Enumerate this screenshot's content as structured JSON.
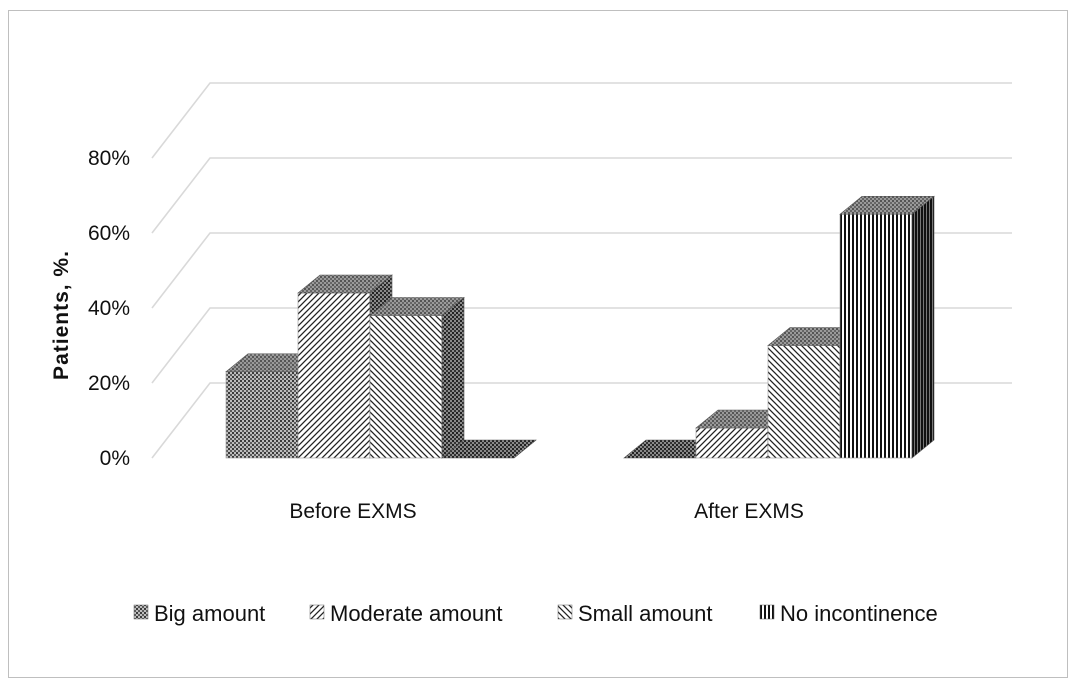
{
  "chart_data": {
    "type": "bar",
    "style": "3d-clustered-column",
    "ylabel": "Patients, %.",
    "ylim": [
      0,
      80
    ],
    "yticks": [
      "0%",
      "20%",
      "40%",
      "60%",
      "80%"
    ],
    "grid": true,
    "legend_position": "bottom",
    "categories": [
      "Before EXMS",
      "After EXMS"
    ],
    "series": [
      {
        "name": "Big amount",
        "values": [
          23,
          0
        ],
        "pattern": "dots"
      },
      {
        "name": "Moderate amount",
        "values": [
          44,
          8
        ],
        "pattern": "diagonal"
      },
      {
        "name": "Small amount",
        "values": [
          38,
          30
        ],
        "pattern": "backdiagonal"
      },
      {
        "name": "No incontinence",
        "values": [
          0,
          65
        ],
        "pattern": "vertical"
      }
    ]
  }
}
